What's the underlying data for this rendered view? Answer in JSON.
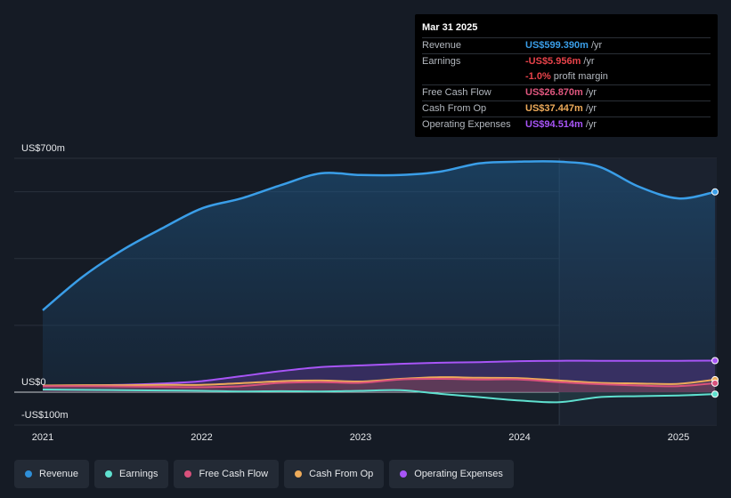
{
  "tooltip": {
    "date": "Mar 31 2025",
    "rows": [
      {
        "label": "Revenue",
        "value": "US$599.390m",
        "unit": "/yr",
        "color": "#3a9ee8"
      },
      {
        "label": "Earnings",
        "value": "-US$5.956m",
        "unit": "/yr",
        "color": "#e8434a"
      },
      {
        "label": "",
        "value": "-1.0%",
        "unit": "profit margin",
        "color": "#e8434a"
      },
      {
        "label": "Free Cash Flow",
        "value": "US$26.870m",
        "unit": "/yr",
        "color": "#e0577f"
      },
      {
        "label": "Cash From Op",
        "value": "US$37.447m",
        "unit": "/yr",
        "color": "#eeab5a"
      },
      {
        "label": "Operating Expenses",
        "value": "US$94.514m",
        "unit": "/yr",
        "color": "#a855f7"
      }
    ]
  },
  "legend": [
    {
      "label": "Revenue",
      "color": "#2f8fd8"
    },
    {
      "label": "Earnings",
      "color": "#5fe0cf"
    },
    {
      "label": "Free Cash Flow",
      "color": "#d9517c"
    },
    {
      "label": "Cash From Op",
      "color": "#eeab5a"
    },
    {
      "label": "Operating Expenses",
      "color": "#a855f7"
    }
  ],
  "chart_data": {
    "type": "area",
    "y_axis_labels": [
      "US$700m",
      "US$0",
      "-US$100m"
    ],
    "ylim": [
      -100,
      700
    ],
    "x_ticks": [
      {
        "label": "2021",
        "x": 2021.0
      },
      {
        "label": "2022",
        "x": 2022.0
      },
      {
        "label": "2023",
        "x": 2023.0
      },
      {
        "label": "2024",
        "x": 2024.0
      },
      {
        "label": "2025",
        "x": 2025.0
      }
    ],
    "xlim": [
      2020.82,
      2025.3
    ],
    "highlight_start": 2024.25,
    "series": [
      {
        "name": "Revenue",
        "color": "#3a9ee8",
        "x": [
          2021.0,
          2021.25,
          2021.5,
          2021.75,
          2022.0,
          2022.25,
          2022.5,
          2022.75,
          2023.0,
          2023.25,
          2023.5,
          2023.75,
          2024.0,
          2024.25,
          2024.5,
          2024.75,
          2025.0,
          2025.23
        ],
        "y": [
          245,
          345,
          425,
          490,
          550,
          580,
          620,
          655,
          650,
          650,
          660,
          685,
          690,
          690,
          675,
          615,
          580,
          599.39
        ]
      },
      {
        "name": "Earnings",
        "color": "#5fe0cf",
        "x": [
          2021.0,
          2021.25,
          2021.5,
          2021.75,
          2022.0,
          2022.25,
          2022.5,
          2022.75,
          2023.0,
          2023.25,
          2023.5,
          2023.75,
          2024.0,
          2024.25,
          2024.5,
          2024.75,
          2025.0,
          2025.23
        ],
        "y": [
          8,
          7,
          6,
          5,
          4,
          2,
          3,
          2,
          4,
          6,
          -5,
          -15,
          -25,
          -30,
          -15,
          -12,
          -10,
          -5.956
        ]
      },
      {
        "name": "Free Cash Flow",
        "color": "#d9517c",
        "x": [
          2021.0,
          2021.25,
          2021.5,
          2021.75,
          2022.0,
          2022.25,
          2022.5,
          2022.75,
          2023.0,
          2023.25,
          2023.5,
          2023.75,
          2024.0,
          2024.25,
          2024.5,
          2024.75,
          2025.0,
          2025.23
        ],
        "y": [
          18,
          18,
          17,
          16,
          15,
          18,
          28,
          30,
          28,
          38,
          40,
          38,
          38,
          30,
          24,
          20,
          18,
          26.87
        ]
      },
      {
        "name": "Cash From Op",
        "color": "#eeab5a",
        "x": [
          2021.0,
          2021.25,
          2021.5,
          2021.75,
          2022.0,
          2022.25,
          2022.5,
          2022.75,
          2023.0,
          2023.25,
          2023.5,
          2023.75,
          2024.0,
          2024.25,
          2024.5,
          2024.75,
          2025.0,
          2025.23
        ],
        "y": [
          20,
          21,
          21,
          22,
          22,
          27,
          33,
          35,
          32,
          40,
          45,
          43,
          42,
          35,
          28,
          26,
          25,
          37.447
        ]
      },
      {
        "name": "Operating Expenses",
        "color": "#a855f7",
        "x": [
          2021.0,
          2021.25,
          2021.5,
          2021.75,
          2022.0,
          2022.25,
          2022.5,
          2022.75,
          2023.0,
          2023.25,
          2023.5,
          2023.75,
          2024.0,
          2024.25,
          2024.5,
          2024.75,
          2025.0,
          2025.23
        ],
        "y": [
          18,
          20,
          22,
          26,
          33,
          48,
          63,
          75,
          80,
          85,
          88,
          90,
          93,
          94,
          94,
          94,
          94,
          94.514
        ]
      }
    ]
  }
}
